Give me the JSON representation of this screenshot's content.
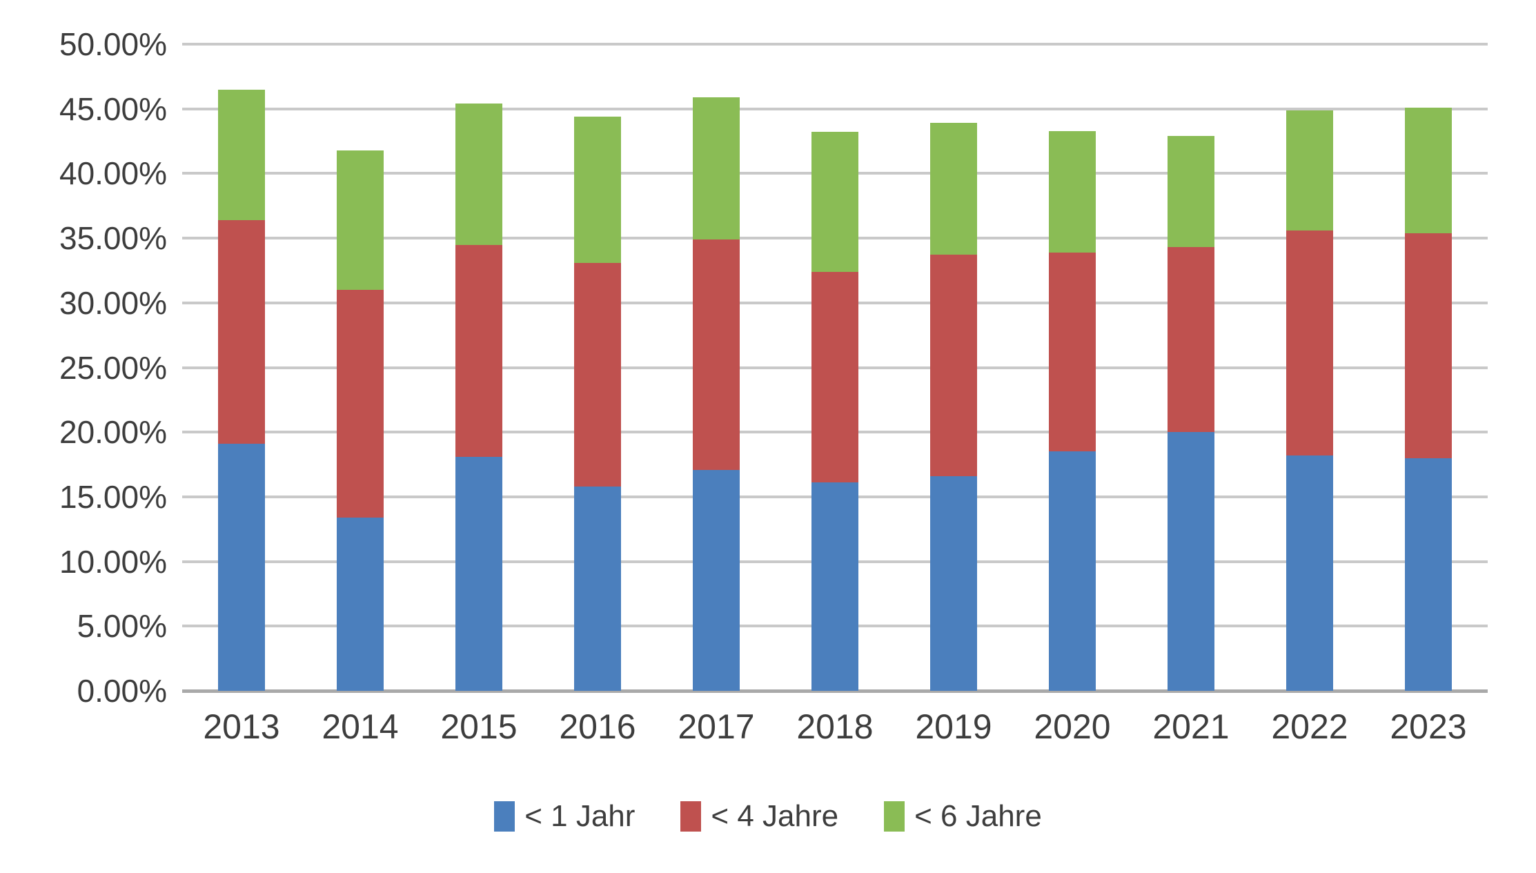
{
  "chart_data": {
    "type": "bar",
    "stacked": true,
    "title": "",
    "xlabel": "",
    "ylabel": "",
    "categories": [
      "2013",
      "2014",
      "2015",
      "2016",
      "2017",
      "2018",
      "2019",
      "2020",
      "2021",
      "2022",
      "2023"
    ],
    "series": [
      {
        "name": "< 1 Jahr",
        "color": "#4b7fbd",
        "values": [
          19.1,
          13.4,
          18.1,
          15.8,
          17.1,
          16.1,
          16.6,
          18.5,
          20.0,
          18.2,
          18.0
        ]
      },
      {
        "name": "< 4 Jahre",
        "color": "#bf514f",
        "values": [
          17.3,
          17.6,
          16.4,
          17.3,
          17.8,
          16.3,
          17.1,
          15.4,
          14.3,
          17.4,
          17.4
        ]
      },
      {
        "name": "< 6 Jahre",
        "color": "#8abc55",
        "values": [
          10.1,
          10.8,
          10.9,
          11.3,
          11.0,
          10.8,
          10.2,
          9.4,
          8.6,
          9.3,
          9.7
        ]
      }
    ],
    "stack_totals": [
      46.5,
      41.8,
      45.4,
      44.4,
      45.9,
      43.2,
      43.9,
      43.3,
      42.9,
      44.9,
      45.1
    ],
    "y_axis": {
      "min": 0,
      "max": 50,
      "step": 5,
      "format": "percent",
      "tick_labels": [
        "50.00%",
        "45.00%",
        "40.00%",
        "35.00%",
        "30.00%",
        "25.00%",
        "20.00%",
        "15.00%",
        "10.00%",
        "5.00%",
        "0.00%"
      ]
    },
    "grid": true,
    "legend_position": "bottom"
  },
  "colors": {
    "background": "#ffffff",
    "gridline": "#c9c9c9",
    "axis_line": "#a9a9a9",
    "text": "#3d3d3d",
    "series_blue": "#4b7fbd",
    "series_red": "#bf514f",
    "series_green": "#8abc55"
  }
}
